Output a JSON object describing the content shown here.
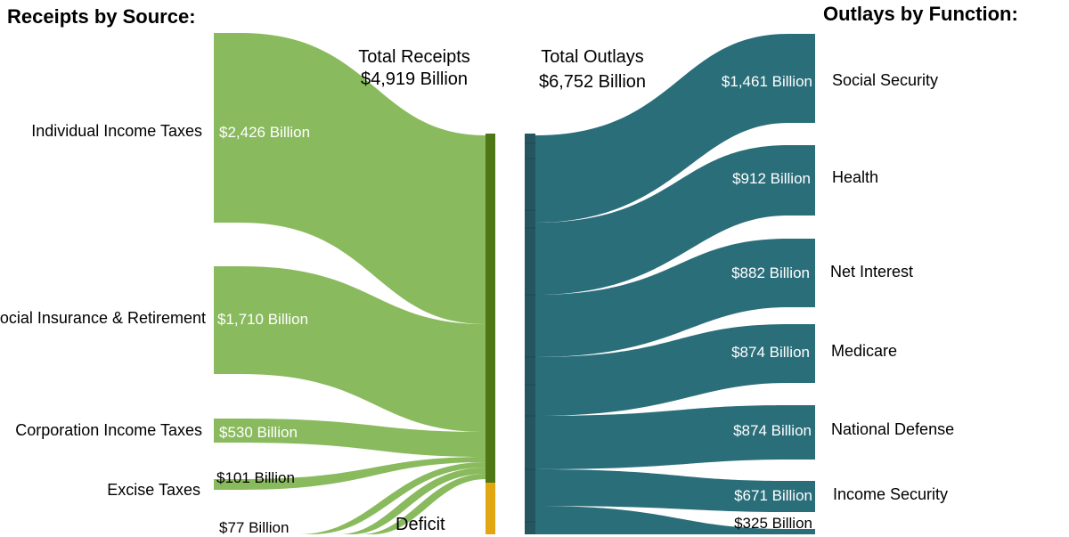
{
  "headers": {
    "receipts": "Receipts by Source:",
    "outlays": "Outlays by Function:"
  },
  "totals": {
    "receipts_label": "Total Receipts",
    "receipts_value": "$4,919 Billion",
    "outlays_label": "Total Outlays",
    "outlays_value": "$6,752 Billion"
  },
  "deficit_label": "Deficit",
  "colors": {
    "receipts_flow": "#8aba5e",
    "receipts_total_bar": "#4e7716",
    "deficit": "#e2a612",
    "outlays_flow": "#2a6e7a",
    "outlays_total_bar": "#255660"
  },
  "receipts": [
    {
      "source": "Individual Income Taxes",
      "value": "$2,426 Billion"
    },
    {
      "source": "Social Insurance & Retirement",
      "value": "$1,710 Billion"
    },
    {
      "source": "Corporation Income Taxes",
      "value": "$530 Billion"
    },
    {
      "source": "Excise Taxes",
      "value": "$101 Billion"
    },
    {
      "source": "",
      "value": "$77 Billion"
    }
  ],
  "outlays": [
    {
      "function": "Social Security",
      "value": "$1,461 Billion"
    },
    {
      "function": "Health",
      "value": "$912 Billion"
    },
    {
      "function": "Net Interest",
      "value": "$882 Billion"
    },
    {
      "function": "Medicare",
      "value": "$874 Billion"
    },
    {
      "function": "National Defense",
      "value": "$874 Billion"
    },
    {
      "function": "Income Security",
      "value": "$671 Billion"
    },
    {
      "function": "",
      "value": "$325 Billion"
    }
  ]
}
